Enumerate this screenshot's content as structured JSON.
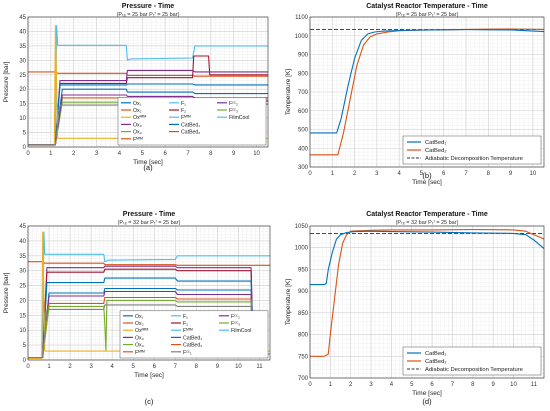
{
  "colors": {
    "ox1": "#0072BD",
    "ox2": "#D95319",
    "ox_mfm": "#EDB120",
    "ox3": "#7E2F8E",
    "ox4": "#77AC30",
    "f_mfm": "#4DBEEE",
    "f1": "#4DBEEE",
    "f2": "#A2142F",
    "fcc": "#7F7F7F",
    "fcc2": "#D95319",
    "catbed1": "#0072BD",
    "catbed2": "#D95319",
    "fcc3": "#7E2F8E",
    "filmcool": "#4DBEEE",
    "adiabatic": "#333333"
  },
  "chart_data": [
    {
      "id": "a",
      "type": "line",
      "title": "Pressure - Time",
      "subtitle": "(Pₜₑ = 25 bar Pₜᶠ = 25 bar)",
      "xlabel": "Time [sec]",
      "ylabel": "Pressure [bar]",
      "xlim": [
        0,
        10.5
      ],
      "ylim": [
        0,
        45
      ],
      "xticks": [
        0,
        1,
        2,
        3,
        4,
        5,
        6,
        7,
        8,
        9,
        10
      ],
      "yticks": [
        0,
        5,
        10,
        15,
        20,
        25,
        30,
        35,
        40,
        45
      ],
      "grid": true,
      "legend_position": "bottom-right",
      "caption": "(a)",
      "legend": [
        {
          "label": "Ox₁",
          "color": "ox1"
        },
        {
          "label": "F₁",
          "color": "f1"
        },
        {
          "label": "Fᶜᶜ₂",
          "color": "fcc3"
        },
        {
          "label": "Ox₂",
          "color": "ox2"
        },
        {
          "label": "F₂",
          "color": "f2"
        },
        {
          "label": "Fᶜᶜ₃",
          "color": "ox4"
        },
        {
          "label": "Oxᴹᶠᴹ",
          "color": "ox_mfm"
        },
        {
          "label": "Fᴹᶠᴹ",
          "color": "f_mfm"
        },
        {
          "label": "FilmCool",
          "color": "filmcool"
        },
        {
          "label": "Ox₃",
          "color": "ox3"
        },
        {
          "label": "CatBed₁",
          "color": "catbed1"
        },
        {
          "label": "",
          "color": ""
        },
        {
          "label": "Ox₄",
          "color": "ox4"
        },
        {
          "label": "CatBed₂",
          "color": "catbed2"
        },
        {
          "label": "",
          "color": ""
        },
        {
          "label": "Fᴹᶠᴹ",
          "color": "fcc2"
        },
        {
          "label": "",
          "color": ""
        },
        {
          "label": "",
          "color": ""
        }
      ],
      "series": [
        {
          "color": "ox2",
          "x": [
            0,
            1.2,
            1.3,
            4.3,
            4.35,
            7.2,
            7.3,
            10.5
          ],
          "y": [
            26,
            26,
            25.5,
            25.5,
            24.8,
            24.8,
            24.5,
            24.5
          ]
        },
        {
          "color": "filmcool",
          "x": [
            0,
            1.2,
            1.25,
            1.3,
            4.3,
            4.35,
            4.5,
            7.2,
            7.3,
            10.5
          ],
          "y": [
            0.8,
            0.8,
            42,
            35.2,
            35.2,
            30,
            30.5,
            30.8,
            35,
            35
          ]
        },
        {
          "color": "f2",
          "x": [
            0,
            1.2,
            1.4,
            4.3,
            4.35,
            7.2,
            7.25,
            7.9,
            7.95,
            10.5
          ],
          "y": [
            0.8,
            0.8,
            22,
            22,
            24,
            24,
            31.5,
            31.5,
            25,
            25
          ]
        },
        {
          "color": "ox3",
          "x": [
            0,
            1.2,
            1.4,
            4.3,
            4.35,
            7.2,
            7.3,
            10.5
          ],
          "y": [
            0.8,
            0.8,
            23,
            23,
            26.5,
            26.5,
            26,
            26
          ]
        },
        {
          "color": "ox1",
          "x": [
            0,
            1.2,
            1.4,
            4.3,
            4.35,
            7.2,
            7.3,
            10.5
          ],
          "y": [
            0.8,
            0.8,
            21.5,
            21.5,
            21.8,
            21.8,
            21.5,
            21.5
          ]
        },
        {
          "color": "catbed1",
          "x": [
            0,
            1.2,
            1.5,
            4.3,
            4.35,
            7.2,
            7.3,
            10.5
          ],
          "y": [
            0.8,
            0.8,
            20,
            20,
            19,
            19,
            18.5,
            18.5
          ]
        },
        {
          "color": "catbed2",
          "x": [
            0,
            1.2,
            1.5,
            4.3,
            4.35,
            7.2,
            7.3,
            10.5
          ],
          "y": [
            0.8,
            0.8,
            17,
            17,
            16.5,
            16.5,
            16.2,
            16.2
          ]
        },
        {
          "color": "ox4",
          "x": [
            0,
            1.2,
            1.5,
            4.3,
            4.35,
            7.2,
            7.3,
            10.5
          ],
          "y": [
            0.8,
            0.8,
            15.5,
            15.5,
            16,
            16,
            15.8,
            15.8
          ]
        },
        {
          "color": "fcc3",
          "x": [
            0,
            1.2,
            1.5,
            4.3,
            4.35,
            7.2,
            7.3,
            10.5
          ],
          "y": [
            0.8,
            0.8,
            18,
            18,
            17.5,
            17.5,
            17,
            17
          ]
        },
        {
          "color": "ox_mfm",
          "x": [
            0,
            1.15,
            1.2,
            1.3,
            10.5
          ],
          "y": [
            0.5,
            0.5,
            42,
            3,
            3
          ]
        },
        {
          "color": "fcc",
          "x": [
            0,
            1.2,
            1.4,
            4.3,
            4.35,
            7.2,
            7.3,
            10.5
          ],
          "y": [
            0.8,
            0.8,
            14.5,
            14.5,
            15,
            15,
            14.8,
            14.8
          ]
        }
      ]
    },
    {
      "id": "b",
      "type": "line",
      "title": "Catalyst Reactor Temperature - Time",
      "subtitle": "(Pₜₑ = 25 bar Pₜᶠ = 25 bar)",
      "xlabel": "Time [sec]",
      "ylabel": "Temperature [K]",
      "xlim": [
        0,
        10.5
      ],
      "ylim": [
        300,
        1100
      ],
      "xticks": [
        0,
        1,
        2,
        3,
        4,
        5,
        6,
        7,
        8,
        9,
        10
      ],
      "yticks": [
        300,
        400,
        500,
        600,
        700,
        800,
        900,
        1000,
        1100
      ],
      "grid": true,
      "legend_position": "bottom-right",
      "caption": "(b)",
      "legend": [
        {
          "label": "CatBed₁",
          "color": "catbed1",
          "dash": false
        },
        {
          "label": "CatBed₂",
          "color": "catbed2",
          "dash": false
        },
        {
          "label": "Adiabatic Decomposition Temperature",
          "color": "adiabatic",
          "dash": true
        }
      ],
      "series": [
        {
          "color": "adiabatic",
          "dash": true,
          "x": [
            0,
            10.5
          ],
          "y": [
            1033,
            1033
          ]
        },
        {
          "color": "catbed2",
          "x": [
            0,
            1.25,
            1.5,
            1.8,
            2.1,
            2.4,
            2.7,
            3.0,
            3.5,
            4.0,
            5.0,
            6.0,
            7.0,
            8.0,
            9.0,
            10.5
          ],
          "y": [
            365,
            365,
            480,
            660,
            840,
            950,
            995,
            1010,
            1020,
            1027,
            1030,
            1032,
            1034,
            1035,
            1036,
            1034
          ]
        },
        {
          "color": "catbed1",
          "x": [
            0,
            1.2,
            1.4,
            1.7,
            2.0,
            2.3,
            2.6,
            2.9,
            3.3,
            4.0,
            5.0,
            6.0,
            7.0,
            8.0,
            9.0,
            10.5
          ],
          "y": [
            482,
            482,
            560,
            730,
            880,
            975,
            1010,
            1020,
            1025,
            1028,
            1030,
            1032,
            1033,
            1032,
            1031,
            1022
          ]
        }
      ]
    },
    {
      "id": "c",
      "type": "line",
      "title": "Pressure - Time",
      "subtitle": "(Pₜₑ = 32 bar Pₜᶠ = 25 bar)",
      "xlabel": "Time [sec]",
      "ylabel": "Pressure [bar]",
      "xlim": [
        0,
        11.5
      ],
      "ylim": [
        0,
        45
      ],
      "xticks": [
        0,
        1,
        2,
        3,
        4,
        5,
        6,
        7,
        8,
        9,
        10,
        11
      ],
      "yticks": [
        0,
        5,
        10,
        15,
        20,
        25,
        30,
        35,
        40,
        45
      ],
      "grid": true,
      "legend_position": "bottom-right",
      "caption": "(c)",
      "legend": [
        {
          "label": "Ox₁",
          "color": "ox1"
        },
        {
          "label": "F₁",
          "color": "f1"
        },
        {
          "label": "Fᶜᶜ₂",
          "color": "fcc3"
        },
        {
          "label": "Ox₂",
          "color": "ox2"
        },
        {
          "label": "F₂",
          "color": "f2"
        },
        {
          "label": "Fᶜᶜ₃",
          "color": "ox4"
        },
        {
          "label": "Oxᴹᶠᴹ",
          "color": "ox_mfm"
        },
        {
          "label": "Fᴹᶠᴹ",
          "color": "f_mfm"
        },
        {
          "label": "FilmCool",
          "color": "filmcool"
        },
        {
          "label": "Ox₃",
          "color": "ox3"
        },
        {
          "label": "CatBed₁",
          "color": "catbed1"
        },
        {
          "label": "",
          "color": ""
        },
        {
          "label": "Ox₄",
          "color": "ox4"
        },
        {
          "label": "CatBed₂",
          "color": "catbed2"
        },
        {
          "label": "",
          "color": ""
        },
        {
          "label": "Fᴹᶠᴹ",
          "color": "fcc2"
        },
        {
          "label": "Fᶜᶜ₁",
          "color": "fcc"
        },
        {
          "label": "",
          "color": ""
        }
      ],
      "series": [
        {
          "color": "ox2",
          "x": [
            0,
            0.7,
            0.8,
            3.6,
            3.65,
            7.0,
            7.1,
            11.5
          ],
          "y": [
            33,
            33,
            32.5,
            32.5,
            32,
            32,
            31.8,
            31.8
          ]
        },
        {
          "color": "filmcool",
          "x": [
            0,
            0.7,
            0.75,
            0.8,
            3.6,
            3.65,
            3.8,
            7.0,
            7.1,
            11.5
          ],
          "y": [
            0.8,
            0.8,
            43,
            35.5,
            35.5,
            33,
            33.5,
            33.8,
            35,
            35
          ]
        },
        {
          "color": "ox3",
          "x": [
            0,
            0.7,
            0.9,
            3.6,
            3.65,
            7.0,
            7.1,
            10.6,
            10.7,
            11.5
          ],
          "y": [
            0.8,
            0.8,
            31,
            31,
            31.5,
            31.5,
            31,
            31,
            2,
            2
          ]
        },
        {
          "color": "f2",
          "x": [
            0,
            0.7,
            0.9,
            3.6,
            3.65,
            7.0,
            7.1,
            10.6,
            10.7,
            11.5
          ],
          "y": [
            0.8,
            0.8,
            29.5,
            29.5,
            30.5,
            30.5,
            30,
            30,
            2,
            2
          ]
        },
        {
          "color": "ox1",
          "x": [
            0,
            0.7,
            0.9,
            3.6,
            3.65,
            7.0,
            7.1,
            10.6,
            10.7,
            11.5
          ],
          "y": [
            0.8,
            0.8,
            26,
            26,
            27.5,
            27.5,
            26.5,
            26.5,
            2,
            2
          ]
        },
        {
          "color": "catbed1",
          "x": [
            0,
            0.7,
            1.0,
            3.6,
            3.65,
            7.0,
            7.1,
            10.6,
            10.7,
            11.5
          ],
          "y": [
            0.8,
            0.8,
            22.5,
            22.5,
            24,
            24,
            23.5,
            23.5,
            2,
            2
          ]
        },
        {
          "color": "fcc3",
          "x": [
            0,
            0.7,
            1.0,
            3.6,
            3.65,
            7.0,
            7.1,
            10.6,
            10.7,
            11.5
          ],
          "y": [
            0.8,
            0.8,
            21.5,
            21.5,
            23,
            23,
            22,
            22,
            2,
            2
          ]
        },
        {
          "color": "catbed2",
          "x": [
            0,
            0.7,
            1.0,
            3.6,
            3.65,
            7.0,
            7.1,
            10.6,
            10.7,
            11.5
          ],
          "y": [
            0.8,
            0.8,
            19,
            19,
            21,
            21,
            20.5,
            20.5,
            2,
            2
          ]
        },
        {
          "color": "ox4",
          "x": [
            0,
            0.7,
            1.0,
            3.6,
            3.65,
            3.7,
            3.75,
            7.0,
            7.1,
            10.6,
            10.7,
            11.5
          ],
          "y": [
            0.8,
            0.8,
            18,
            18,
            12,
            3,
            20,
            20,
            19.5,
            19.5,
            2,
            2
          ]
        },
        {
          "color": "ox_mfm",
          "x": [
            0,
            0.65,
            0.7,
            0.8,
            11.5
          ],
          "y": [
            0.5,
            0.5,
            43,
            3,
            3
          ]
        },
        {
          "color": "fcc",
          "x": [
            0,
            0.7,
            0.9,
            3.6,
            3.65,
            7.0,
            7.1,
            10.6,
            10.7,
            11.5
          ],
          "y": [
            0.8,
            0.8,
            17,
            17,
            18.5,
            18.5,
            18,
            18,
            2,
            2
          ]
        }
      ]
    },
    {
      "id": "d",
      "type": "line",
      "title": "Catalyst Reactor Temperature - Time",
      "subtitle": "(Pₜₑ = 32 bar Pₜᶠ = 25 bar)",
      "xlabel": "Time [sec]",
      "ylabel": "Temperature [K]",
      "xlim": [
        0,
        11.5
      ],
      "ylim": [
        700,
        1050
      ],
      "xticks": [
        0,
        1,
        2,
        3,
        4,
        5,
        6,
        7,
        8,
        9,
        10,
        11
      ],
      "yticks": [
        700,
        750,
        800,
        850,
        900,
        950,
        1000,
        1050
      ],
      "grid": true,
      "legend_position": "bottom-right",
      "caption": "(d)",
      "legend": [
        {
          "label": "CatBed₁",
          "color": "catbed1",
          "dash": false
        },
        {
          "label": "CatBed₂",
          "color": "catbed2",
          "dash": false
        },
        {
          "label": "Adiabatic Decomposition Temperature",
          "color": "adiabatic",
          "dash": true
        }
      ],
      "series": [
        {
          "color": "adiabatic",
          "dash": true,
          "x": [
            0,
            11.5
          ],
          "y": [
            1033,
            1033
          ]
        },
        {
          "color": "catbed2",
          "x": [
            0,
            0.7,
            0.9,
            1.0,
            1.2,
            1.4,
            1.6,
            1.8,
            2.0,
            3.0,
            4.0,
            6.0,
            8.0,
            10.0,
            10.6,
            11.5
          ],
          "y": [
            750,
            750,
            755,
            800,
            880,
            960,
            1010,
            1030,
            1038,
            1040,
            1041,
            1041,
            1042,
            1041,
            1038,
            1020
          ]
        },
        {
          "color": "catbed1",
          "x": [
            0,
            0.7,
            0.8,
            0.9,
            1.1,
            1.3,
            1.5,
            1.8,
            2.2,
            3.0,
            4.0,
            6.0,
            8.0,
            10.0,
            10.6,
            11.0,
            11.5
          ],
          "y": [
            915,
            915,
            918,
            950,
            990,
            1020,
            1030,
            1035,
            1037,
            1038,
            1037,
            1036,
            1034,
            1033,
            1030,
            1018,
            998
          ]
        }
      ]
    }
  ]
}
